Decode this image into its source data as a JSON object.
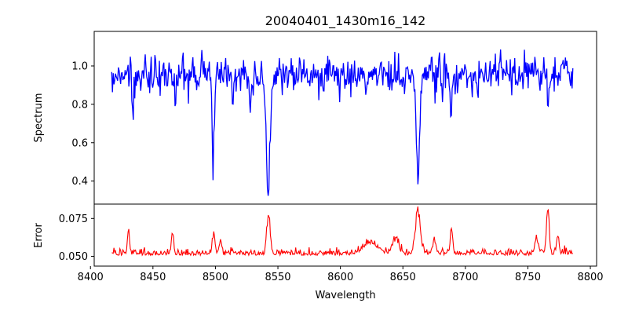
{
  "chart_data": [
    {
      "type": "line",
      "title": "20040401_1430m16_142",
      "xlabel": "",
      "ylabel": "Spectrum",
      "xlim": [
        8403,
        8805
      ],
      "ylim": [
        0.28,
        1.18
      ],
      "yticks": [
        0.4,
        0.6,
        0.8,
        1.0
      ],
      "ytick_labels": [
        "0.4",
        "0.6",
        "0.8",
        "1.0"
      ],
      "grid": false,
      "series_color": "#0000ff",
      "x_start": 8417,
      "x_end": 8786,
      "baseline": 0.955,
      "noise_amplitude": 0.065,
      "absorption_lines": [
        {
          "center": 8498.2,
          "depth": 0.45,
          "width": 0.9
        },
        {
          "center": 8542.2,
          "depth": 0.63,
          "width": 1.5
        },
        {
          "center": 8662.1,
          "depth": 0.54,
          "width": 1.3
        },
        {
          "center": 8688.6,
          "depth": 0.26,
          "width": 0.6
        },
        {
          "center": 8434.0,
          "depth": 0.18,
          "width": 0.7
        },
        {
          "center": 8468.0,
          "depth": 0.15,
          "width": 0.5
        },
        {
          "center": 8514.0,
          "depth": 0.12,
          "width": 0.7
        },
        {
          "center": 8528.0,
          "depth": 0.12,
          "width": 0.8
        },
        {
          "center": 8766.0,
          "depth": 0.22,
          "width": 0.5
        },
        {
          "center": 8621.0,
          "depth": 0.08,
          "width": 0.8
        }
      ]
    },
    {
      "type": "line",
      "title": "",
      "xlabel": "Wavelength",
      "ylabel": "Error",
      "xlim": [
        8403,
        8805
      ],
      "ylim": [
        0.0435,
        0.0845
      ],
      "yticks": [
        0.05,
        0.075
      ],
      "ytick_labels": [
        "0.050",
        "0.075"
      ],
      "xticks": [
        8400,
        8450,
        8500,
        8550,
        8600,
        8650,
        8700,
        8750,
        8800
      ],
      "xtick_labels": [
        "8400",
        "8450",
        "8500",
        "8550",
        "8600",
        "8650",
        "8700",
        "8750",
        "8800"
      ],
      "grid": false,
      "series_color": "#ff0000",
      "x_start": 8417,
      "x_end": 8786,
      "baseline": 0.0515,
      "noise_amplitude": 0.0028,
      "error_peaks": [
        {
          "center": 8430.5,
          "height": 0.019,
          "width": 0.8
        },
        {
          "center": 8465.5,
          "height": 0.012,
          "width": 0.9
        },
        {
          "center": 8498.5,
          "height": 0.014,
          "width": 1.0
        },
        {
          "center": 8504.0,
          "height": 0.01,
          "width": 0.8
        },
        {
          "center": 8542.5,
          "height": 0.029,
          "width": 1.3
        },
        {
          "center": 8624.0,
          "height": 0.007,
          "width": 6.0
        },
        {
          "center": 8644.0,
          "height": 0.01,
          "width": 2.5
        },
        {
          "center": 8662.0,
          "height": 0.027,
          "width": 2.0
        },
        {
          "center": 8675.0,
          "height": 0.01,
          "width": 1.2
        },
        {
          "center": 8689.0,
          "height": 0.016,
          "width": 0.9
        },
        {
          "center": 8757.0,
          "height": 0.01,
          "width": 1.5
        },
        {
          "center": 8766.0,
          "height": 0.03,
          "width": 1.1
        },
        {
          "center": 8774.0,
          "height": 0.012,
          "width": 1.0
        }
      ]
    }
  ]
}
